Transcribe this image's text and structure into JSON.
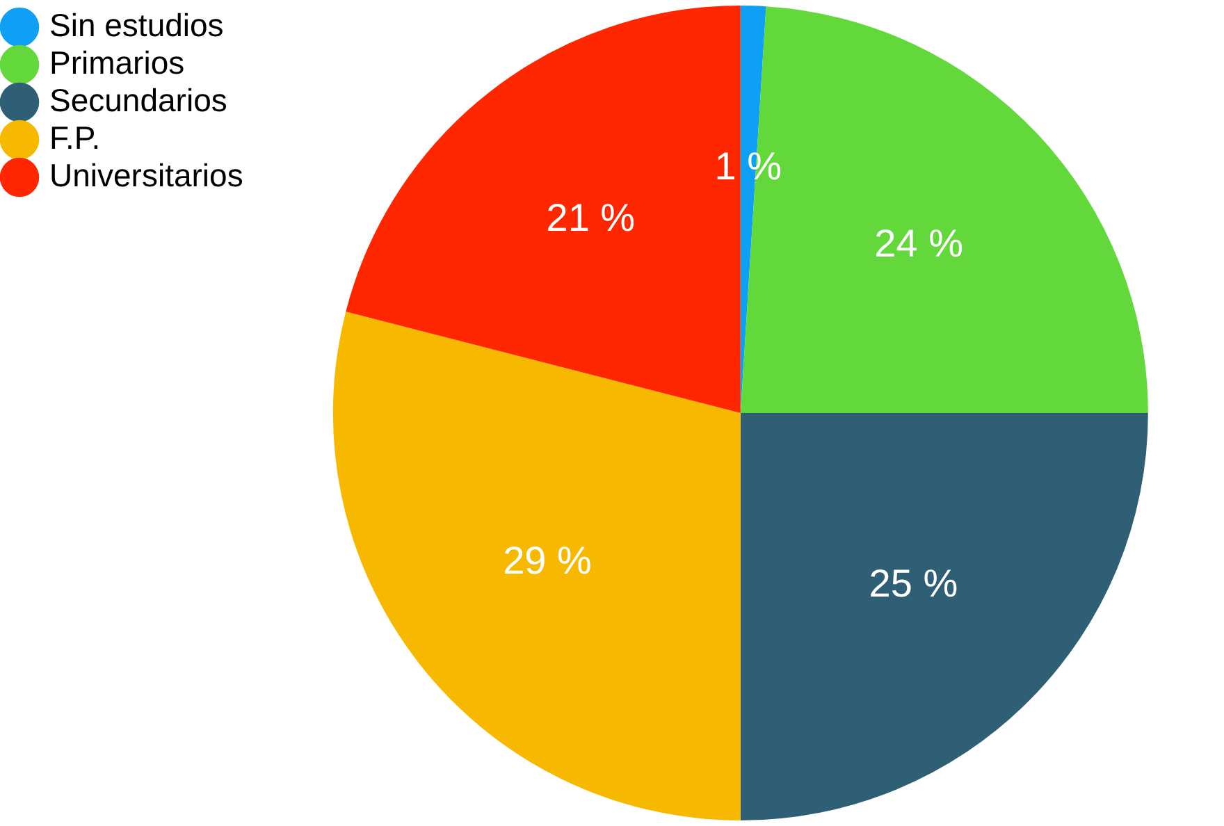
{
  "chart_data": {
    "type": "pie",
    "categories": [
      "Sin estudios",
      "Primarios",
      "Secundarios",
      "F.P.",
      "Universitarios"
    ],
    "values": [
      1,
      24,
      25,
      29,
      21
    ],
    "value_labels": [
      "1 %",
      "24 %",
      "25 %",
      "29 %",
      "21 %"
    ],
    "colors": [
      "#0fa0f5",
      "#62d83a",
      "#2f5f75",
      "#f7b800",
      "#fe2700"
    ],
    "legend": "top left"
  }
}
